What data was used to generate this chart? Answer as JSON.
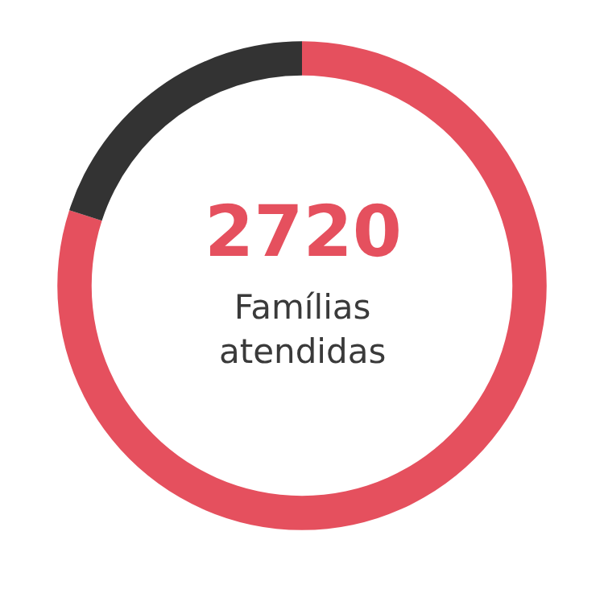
{
  "chart_data": {
    "type": "donut",
    "categories": [
      null,
      null
    ],
    "values": [
      80,
      20
    ],
    "colors": [
      "#e5505e",
      "#333333"
    ],
    "annotations": [
      "2720",
      "Famílias atendidas"
    ],
    "legend": false
  }
}
